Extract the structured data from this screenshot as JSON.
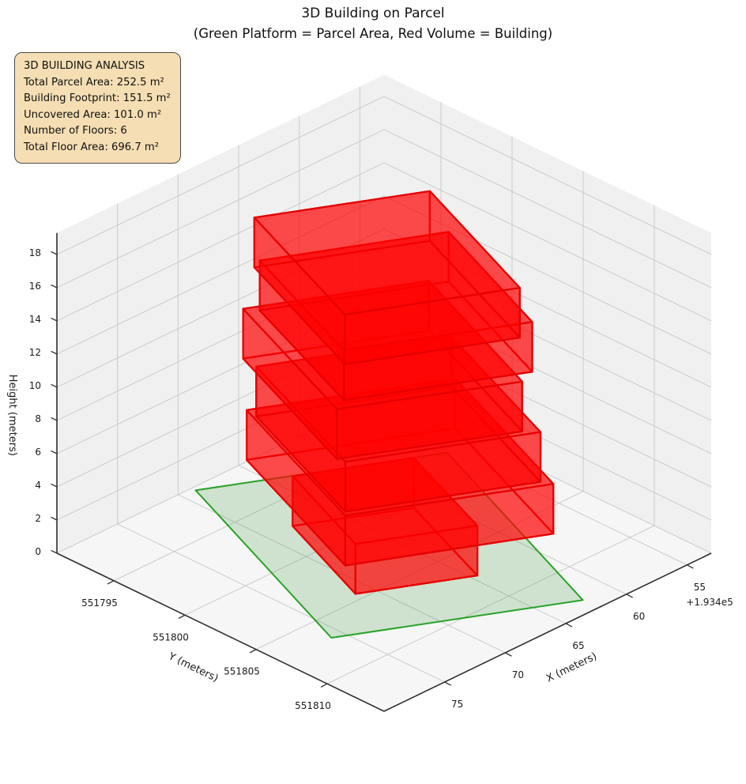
{
  "title": "3D Building on Parcel",
  "subtitle": "(Green Platform = Parcel Area, Red Volume = Building)",
  "analysis_box": {
    "lines": [
      "3D BUILDING ANALYSIS",
      "Total Parcel Area: 252.5 m²",
      "Building Footprint: 151.5 m²",
      "Uncovered Area: 101.0 m²",
      "Number of Floors: 6",
      "Total Floor Area: 696.7 m²"
    ],
    "bg_color": "#f5deb3",
    "border_color": "#4a4a4a"
  },
  "chart_data": {
    "type": "3d-building-plot",
    "projection_hint": {
      "elev_deg": 30,
      "azim_deg": 45,
      "style": "matplotlib-3d"
    },
    "axes": {
      "x": {
        "label": "X (meters)",
        "ticks": [
          55,
          60,
          65,
          70,
          75
        ],
        "offset_text": "+1.934e5",
        "range": [
          53,
          80
        ]
      },
      "y": {
        "label": "Y (meters)",
        "ticks": [
          551795,
          551800,
          551805,
          551810
        ],
        "range": [
          551791,
          551814
        ]
      },
      "z": {
        "label": "Height (meters)",
        "ticks": [
          0,
          2,
          4,
          6,
          8,
          10,
          12,
          14,
          16,
          18
        ],
        "range": [
          0,
          19.3
        ]
      }
    },
    "panes": {
      "wall": "#f0f0f0",
      "floor": "#f6f6f6",
      "grid": "#c6c6c6",
      "axis_line": "#2f2f2f",
      "tick_label_color": "#1a1a1a"
    },
    "parcel": {
      "name": "Parcel Area",
      "fill": "#228B22",
      "fill_alpha": 0.18,
      "edge": "#28a228",
      "polygon_xy": [
        [
          75.9,
          551806.8
        ],
        [
          62.3,
          551812.9
        ],
        [
          55.3,
          551797.4
        ],
        [
          68.9,
          551791.3
        ]
      ]
    },
    "building": {
      "name": "Building",
      "fill": "#ff0000",
      "fill_alpha": 0.45,
      "edge": "#e60000",
      "floor_height_m": 3,
      "floors": [
        {
          "floor": 1,
          "z0": 0,
          "z1": 3,
          "polygon_xy": [
            [
              71.15,
              551804.45
            ],
            [
              64.55,
              551807.4
            ],
            [
              61.4,
              551800.25
            ],
            [
              67.95,
              551797.3
            ]
          ]
        },
        {
          "floor": 2,
          "z0": 3,
          "z1": 6,
          "polygon_xy": [
            [
              73.4,
              551805.65
            ],
            [
              62.1,
              551810.65
            ],
            [
              57.15,
              551799.55
            ],
            [
              68.45,
              551794.5
            ]
          ]
        },
        {
          "floor": 3,
          "z0": 6,
          "z1": 9,
          "polygon_xy": [
            [
              73.05,
              551805.35
            ],
            [
              62.45,
              551810.05
            ],
            [
              58.0,
              551800.0
            ],
            [
              68.6,
              551795.3
            ]
          ]
        },
        {
          "floor": 4,
          "z0": 9,
          "z1": 12,
          "polygon_xy": [
            [
              73.15,
              551804.85
            ],
            [
              63.15,
              551809.35
            ],
            [
              58.4,
              551798.75
            ],
            [
              68.45,
              551794.25
            ]
          ]
        },
        {
          "floor": 5,
          "z0": 12,
          "z1": 15,
          "polygon_xy": [
            [
              72.1,
              551804.45
            ],
            [
              61.9,
              551809.0
            ],
            [
              57.65,
              551799.5
            ],
            [
              67.9,
              551794.95
            ]
          ]
        },
        {
          "floor": 6,
          "z0": 15,
          "z1": 18,
          "polygon_xy": [
            [
              73.25,
              551805.5
            ],
            [
              63.75,
              551809.7
            ],
            [
              59.2,
              551799.5
            ],
            [
              68.7,
              551795.25
            ]
          ]
        }
      ]
    },
    "stats": {
      "total_parcel_area_m2": 252.5,
      "building_footprint_m2": 151.5,
      "uncovered_area_m2": 101.0,
      "number_of_floors": 6,
      "total_floor_area_m2": 696.7
    }
  }
}
